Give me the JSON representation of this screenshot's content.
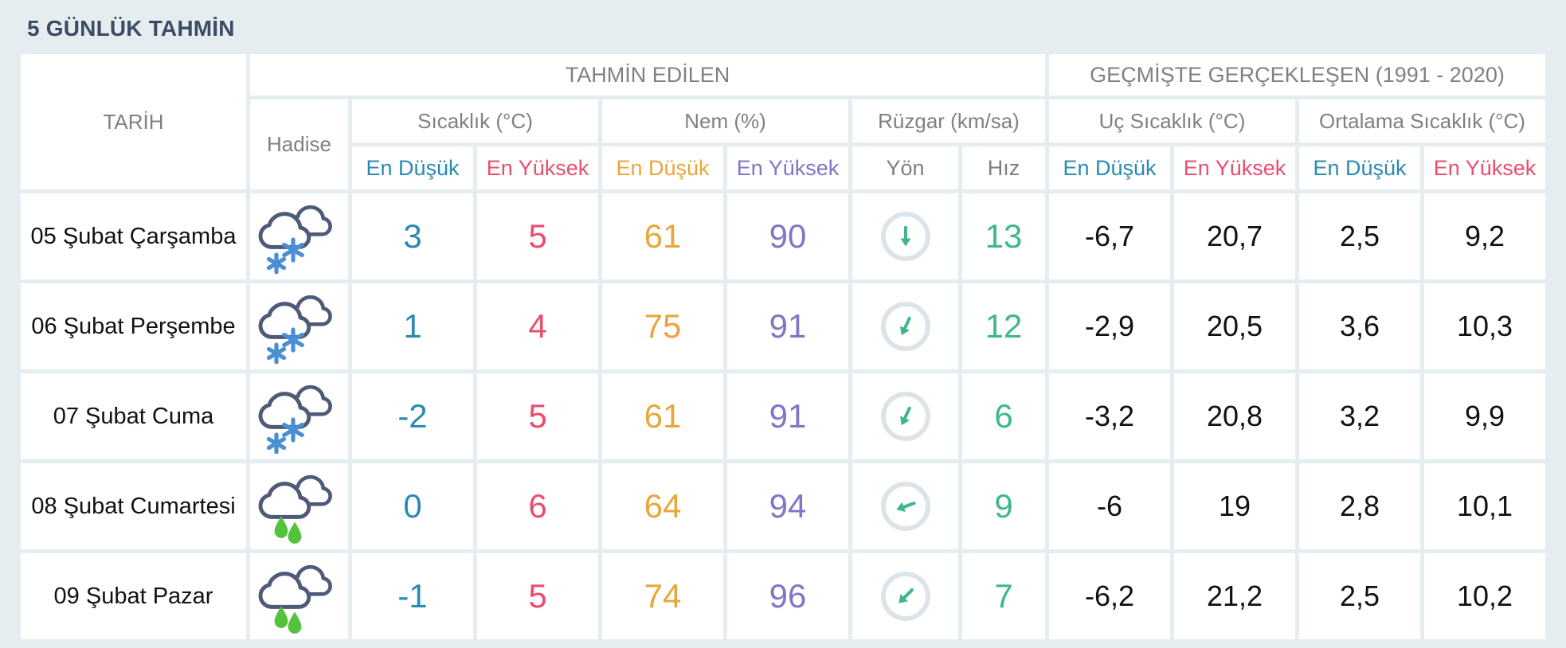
{
  "title": "5 GÜNLÜK TAHMİN",
  "table": {
    "headers": {
      "tarih": "TARİH",
      "hadise": "Hadise",
      "tahmin_edilen": "TAHMİN EDİLEN",
      "gecmiste": "GEÇMİŞTE GERÇEKLEŞEN (1991 - 2020)",
      "sicaklik": "Sıcaklık (°C)",
      "nem": "Nem (%)",
      "ruzgar": "Rüzgar (km/sa)",
      "uc_sicaklik": "Uç Sıcaklık (°C)",
      "ortalama_sicaklik": "Ortalama Sıcaklık (°C)",
      "en_dusuk": "En Düşük",
      "en_yuksek": "En Yüksek",
      "yon": "Yön",
      "hiz": "Hız"
    },
    "colors": {
      "temp_min": "#2b8ab2",
      "temp_max": "#eb4d6e",
      "hum_min": "#e9a63c",
      "hum_max": "#8374c6",
      "wind": "#3eb690",
      "title": "#3d4b66",
      "header_text": "#7e8184",
      "snowflake": "#4a8fd4",
      "raindrop": "#55c23c",
      "cloud_outline": "#4d5a78"
    },
    "rows": [
      {
        "date": "05 Şubat Çarşamba",
        "weather_icon": "snow-cloud",
        "temp_min": "3",
        "temp_max": "5",
        "hum_min": "61",
        "hum_max": "90",
        "wind_dir_deg": 0,
        "wind_speed": "13",
        "hist_min": "-6,7",
        "hist_max": "20,7",
        "avg_min": "2,5",
        "avg_max": "9,2"
      },
      {
        "date": "06 Şubat Perşembe",
        "weather_icon": "snow-cloud",
        "temp_min": "1",
        "temp_max": "4",
        "hum_min": "75",
        "hum_max": "91",
        "wind_dir_deg": 25,
        "wind_speed": "12",
        "hist_min": "-2,9",
        "hist_max": "20,5",
        "avg_min": "3,6",
        "avg_max": "10,3"
      },
      {
        "date": "07 Şubat Cuma",
        "weather_icon": "snow-cloud",
        "temp_min": "-2",
        "temp_max": "5",
        "hum_min": "61",
        "hum_max": "91",
        "wind_dir_deg": 25,
        "wind_speed": "6",
        "hist_min": "-3,2",
        "hist_max": "20,8",
        "avg_min": "3,2",
        "avg_max": "9,9"
      },
      {
        "date": "08 Şubat Cumartesi",
        "weather_icon": "rain-cloud",
        "temp_min": "0",
        "temp_max": "6",
        "hum_min": "64",
        "hum_max": "94",
        "wind_dir_deg": 70,
        "wind_speed": "9",
        "hist_min": "-6",
        "hist_max": "19",
        "avg_min": "2,8",
        "avg_max": "10,1"
      },
      {
        "date": "09 Şubat Pazar",
        "weather_icon": "rain-cloud",
        "temp_min": "-1",
        "temp_max": "5",
        "hum_min": "74",
        "hum_max": "96",
        "wind_dir_deg": 45,
        "wind_speed": "7",
        "hist_min": "-6,2",
        "hist_max": "21,2",
        "avg_min": "2,5",
        "avg_max": "10,2"
      }
    ]
  }
}
